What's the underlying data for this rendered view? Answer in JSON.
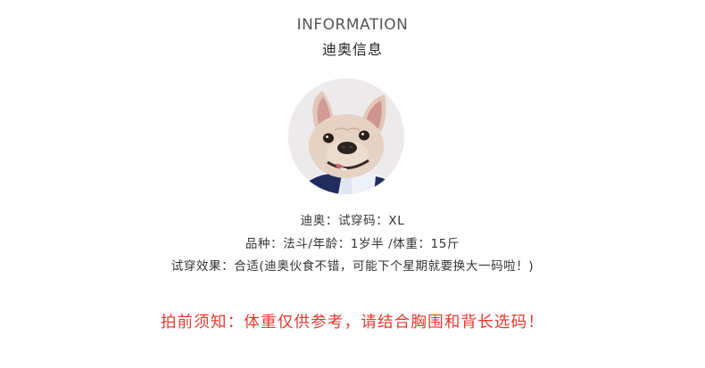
{
  "header": {
    "title_en": "INFORMATION",
    "title_cn": "迪奥信息"
  },
  "profile": {
    "avatar_subject": "french-bulldog-photo"
  },
  "details": {
    "line1": "迪奥：试穿码：XL",
    "line2": "品种：法斗/年龄：1岁半 /体重：15斤",
    "line3": "试穿效果：合适(迪奥伙食不错，可能下个星期就要换大一码啦！)"
  },
  "notice": {
    "text": "拍前须知：体重仅供参考，请结合胸围和背长选码！",
    "color": "#e7392e"
  }
}
